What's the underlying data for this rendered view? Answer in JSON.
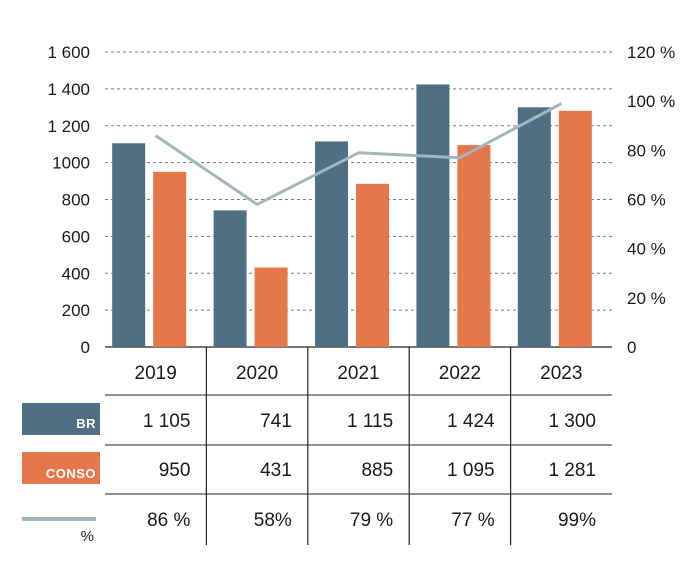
{
  "colors": {
    "br": "#4f6f84",
    "conso": "#e4784b",
    "ratio": "#a3b5bf",
    "grid": "#777777",
    "table_line": "#222222"
  },
  "chart_data": {
    "type": "bar",
    "categories": [
      "2019",
      "2020",
      "2021",
      "2022",
      "2023"
    ],
    "series": [
      {
        "name": "BR",
        "values": [
          1105,
          741,
          1115,
          1424,
          1300
        ],
        "labels": [
          "1 105",
          "741",
          "1 115",
          "1 424",
          "1 300"
        ],
        "kind": "bar",
        "axis": "left"
      },
      {
        "name": "CONSO",
        "values": [
          950,
          431,
          885,
          1095,
          1281
        ],
        "labels": [
          "950",
          "431",
          "885",
          "1 095",
          "1 281"
        ],
        "kind": "bar",
        "axis": "left"
      },
      {
        "name": "%",
        "values": [
          86,
          58,
          79,
          77,
          99
        ],
        "labels": [
          "86 %",
          "58%",
          "79 %",
          "77 %",
          "99%"
        ],
        "kind": "line",
        "axis": "right"
      }
    ],
    "y_left": {
      "ylim": [
        0,
        1600
      ],
      "ticks": [
        0,
        200,
        400,
        600,
        800,
        1000,
        1200,
        1400,
        1600
      ],
      "tick_labels": [
        "0",
        "200",
        "400",
        "600",
        "800",
        "1000",
        "1 200",
        "1 400",
        "1 600"
      ]
    },
    "y_right": {
      "ylim": [
        0,
        120
      ],
      "ticks": [
        0,
        20,
        40,
        60,
        80,
        100,
        120
      ],
      "tick_labels": [
        "0",
        "20 %",
        "40 %",
        "60 %",
        "80 %",
        "100 %",
        "120 %"
      ]
    },
    "grid": "horizontal-dashed",
    "legend": "table-below"
  }
}
